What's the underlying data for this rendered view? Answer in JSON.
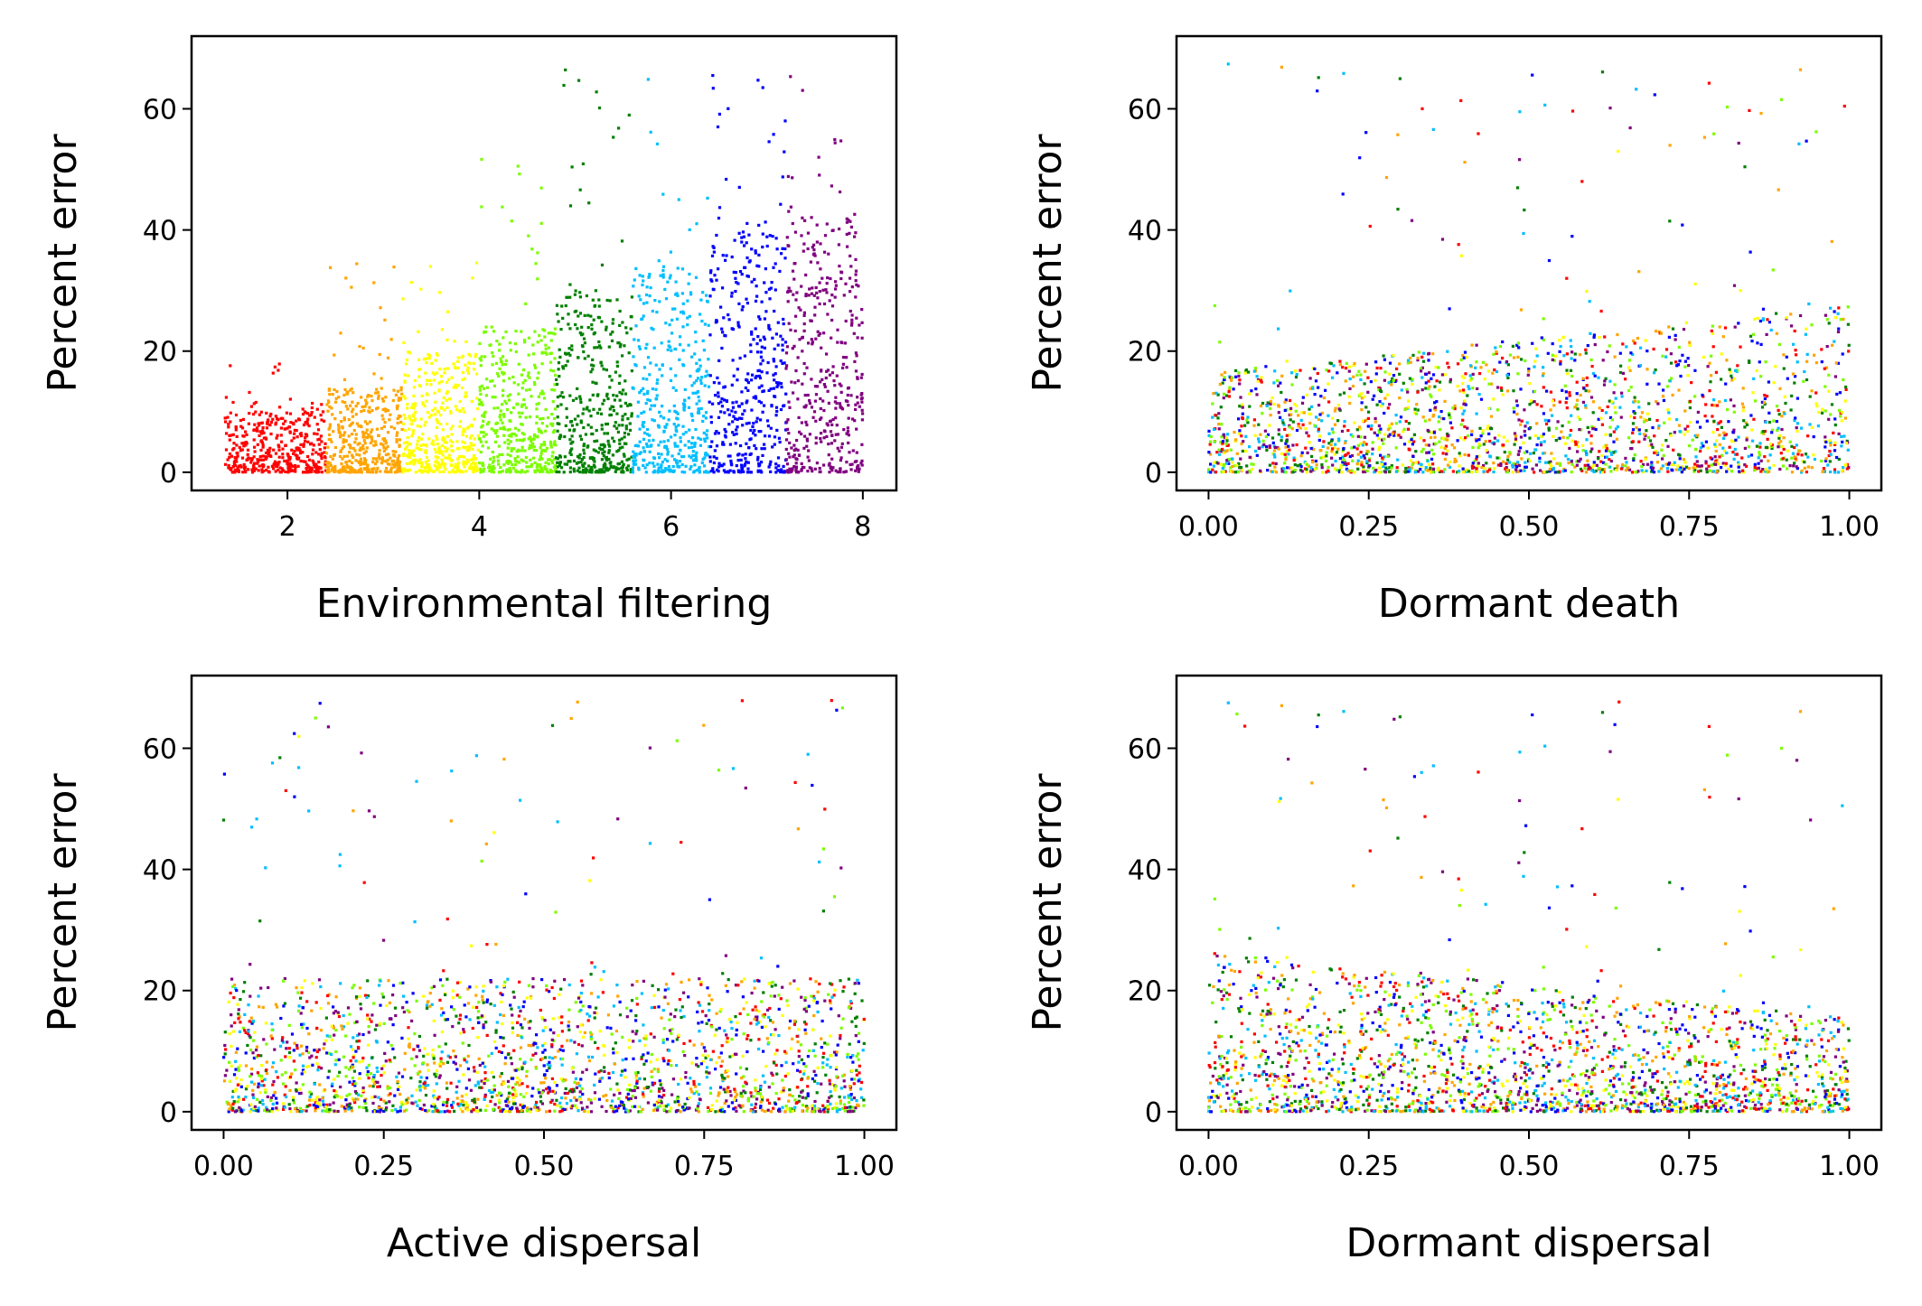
{
  "chart_data": [
    {
      "type": "scatter",
      "title": "",
      "xlabel": "Environmental filtering",
      "ylabel": "Percent error",
      "xlim": [
        1.0,
        8.35
      ],
      "ylim": [
        -3,
        72
      ],
      "xticks": [
        2,
        4,
        6,
        8
      ],
      "xtick_labels": [
        "2",
        "4",
        "6",
        "8"
      ],
      "yticks": [
        0,
        20,
        40,
        60
      ],
      "ytick_labels": [
        "0",
        "20",
        "40",
        "60"
      ],
      "grid": false,
      "legend": "none",
      "pattern": "points colored by environmental filtering group; error spread grows with filtering strength",
      "groups": [
        {
          "color": "#ff0000",
          "x_range": [
            1.35,
            2.4
          ],
          "y_typical_max": 10,
          "y_max": 18
        },
        {
          "color": "#ffa500",
          "x_range": [
            2.4,
            3.2
          ],
          "y_typical_max": 14,
          "y_max": 35
        },
        {
          "color": "#ffff00",
          "x_range": [
            3.2,
            4.0
          ],
          "y_typical_max": 20,
          "y_max": 35
        },
        {
          "color": "#7cfc00",
          "x_range": [
            4.0,
            4.8
          ],
          "y_typical_max": 24,
          "y_max": 52
        },
        {
          "color": "#008000",
          "x_range": [
            4.8,
            5.6
          ],
          "y_typical_max": 30,
          "y_max": 67
        },
        {
          "color": "#00bfff",
          "x_range": [
            5.6,
            6.4
          ],
          "y_typical_max": 34,
          "y_max": 67
        },
        {
          "color": "#0000ff",
          "x_range": [
            6.4,
            7.2
          ],
          "y_typical_max": 40,
          "y_max": 67
        },
        {
          "color": "#800080",
          "x_range": [
            7.2,
            8.0
          ],
          "y_typical_max": 42,
          "y_max": 68
        }
      ]
    },
    {
      "type": "scatter",
      "title": "",
      "xlabel": "Dormant death",
      "ylabel": "Percent error",
      "xlim": [
        -0.05,
        1.05
      ],
      "ylim": [
        -3,
        72
      ],
      "xticks": [
        0.0,
        0.25,
        0.5,
        0.75,
        1.0
      ],
      "xtick_labels": [
        "0.00",
        "0.25",
        "0.50",
        "0.75",
        "1.00"
      ],
      "yticks": [
        0,
        20,
        40,
        60
      ],
      "ytick_labels": [
        "0",
        "20",
        "40",
        "60"
      ],
      "grid": false,
      "legend": "none",
      "pattern": "dense cloud below ~20% error, rising slightly toward dormant death = 1",
      "trend": "increasing",
      "x_range": [
        0,
        1
      ],
      "y_max": 68
    },
    {
      "type": "scatter",
      "title": "",
      "xlabel": "Active dispersal",
      "ylabel": "Percent error",
      "xlim": [
        -0.05,
        1.05
      ],
      "ylim": [
        -3,
        72
      ],
      "xticks": [
        0.0,
        0.25,
        0.5,
        0.75,
        1.0
      ],
      "xtick_labels": [
        "0.00",
        "0.25",
        "0.50",
        "0.75",
        "1.00"
      ],
      "yticks": [
        0,
        20,
        40,
        60
      ],
      "ytick_labels": [
        "0",
        "20",
        "40",
        "60"
      ],
      "grid": false,
      "legend": "none",
      "pattern": "uniform cloud mostly below ~25% error across the whole range",
      "trend": "flat",
      "x_range": [
        0,
        1
      ],
      "y_max": 68
    },
    {
      "type": "scatter",
      "title": "",
      "xlabel": "Dormant dispersal",
      "ylabel": "Percent error",
      "xlim": [
        -0.05,
        1.05
      ],
      "ylim": [
        -3,
        72
      ],
      "xticks": [
        0.0,
        0.25,
        0.5,
        0.75,
        1.0
      ],
      "xtick_labels": [
        "0.00",
        "0.25",
        "0.50",
        "0.75",
        "1.00"
      ],
      "yticks": [
        0,
        20,
        40,
        60
      ],
      "ytick_labels": [
        "0",
        "20",
        "40",
        "60"
      ],
      "grid": false,
      "legend": "none",
      "pattern": "cloud highest near dormant dispersal = 0 and decreasing toward 1",
      "trend": "decreasing",
      "x_range": [
        0,
        1
      ],
      "y_max": 68
    }
  ],
  "palette": [
    "#ff0000",
    "#ffa500",
    "#ffff00",
    "#7cfc00",
    "#008000",
    "#00bfff",
    "#0000ff",
    "#800080"
  ]
}
